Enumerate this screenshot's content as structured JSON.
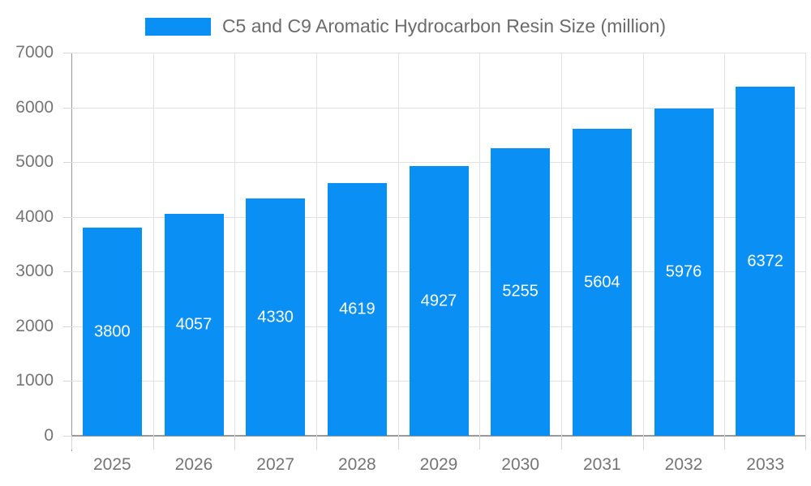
{
  "chart_data": {
    "type": "bar",
    "title": "C5 and C9 Aromatic Hydrocarbon Resin Size (million)",
    "categories": [
      "2025",
      "2026",
      "2027",
      "2028",
      "2029",
      "2030",
      "2031",
      "2032",
      "2033"
    ],
    "values": [
      3800,
      4057,
      4330,
      4619,
      4927,
      5255,
      5604,
      5976,
      6372
    ],
    "xlabel": "",
    "ylabel": "",
    "ylim": [
      0,
      7000
    ],
    "yticks": [
      0,
      1000,
      2000,
      3000,
      4000,
      5000,
      6000,
      7000
    ],
    "grid": true,
    "legend_position": "top",
    "bar_value_labels_inside": true,
    "colors": {
      "bar": "#0a90f5",
      "bar_value_text": "#ffffff",
      "axis_text": "#757575",
      "title_text": "#6b6b6b",
      "grid_line": "#e2e2e2",
      "tick_line": "#d6d6d6",
      "axis_line": "#9a9a9a",
      "background": "#ffffff"
    }
  }
}
